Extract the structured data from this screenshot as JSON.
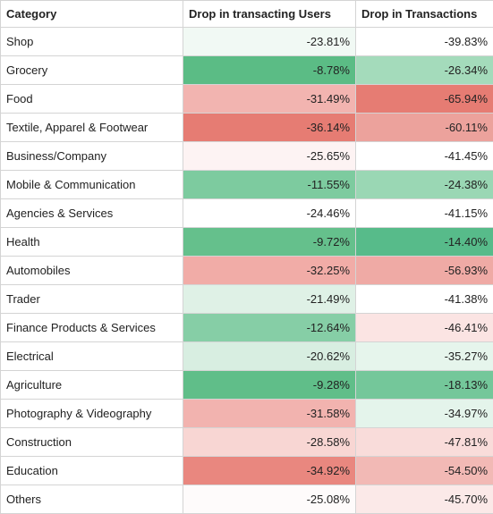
{
  "table": {
    "headers": [
      "Category",
      "Drop in transacting Users",
      "Drop in Transactions"
    ],
    "rows": [
      {
        "category": "Shop",
        "users": "-23.81%",
        "users_color": "#f1f9f4",
        "transactions": "-39.83%",
        "transactions_color": "#ffffff"
      },
      {
        "category": "Grocery",
        "users": "-8.78%",
        "users_color": "#5bbc85",
        "transactions": "-26.34%",
        "transactions_color": "#a4dbbb"
      },
      {
        "category": "Food",
        "users": "-31.49%",
        "users_color": "#f2b4b0",
        "transactions": "-65.94%",
        "transactions_color": "#e67c73"
      },
      {
        "category": "Textile, Apparel & Footwear",
        "users": "-36.14%",
        "users_color": "#e67c73",
        "transactions": "-60.11%",
        "transactions_color": "#eca29c"
      },
      {
        "category": "Business/Company",
        "users": "-25.65%",
        "users_color": "#fdf3f3",
        "transactions": "-41.45%",
        "transactions_color": "#ffffff"
      },
      {
        "category": "Mobile & Communication",
        "users": "-11.55%",
        "users_color": "#7dcb9f",
        "transactions": "-24.38%",
        "transactions_color": "#9ad7b4"
      },
      {
        "category": "Agencies & Services",
        "users": "-24.46%",
        "users_color": "#ffffff",
        "transactions": "-41.15%",
        "transactions_color": "#ffffff"
      },
      {
        "category": "Health",
        "users": "-9.72%",
        "users_color": "#65c08c",
        "transactions": "-14.40%",
        "transactions_color": "#57bb8a"
      },
      {
        "category": "Automobiles",
        "users": "-32.25%",
        "users_color": "#f1aca7",
        "transactions": "-56.93%",
        "transactions_color": "#efaaa5"
      },
      {
        "category": "Trader",
        "users": "-21.49%",
        "users_color": "#dff1e6",
        "transactions": "-41.38%",
        "transactions_color": "#ffffff"
      },
      {
        "category": "Finance Products & Services",
        "users": "-12.64%",
        "users_color": "#86ce a6",
        "transactions": "-46.41%",
        "transactions_color": "#fbe4e3"
      },
      {
        "category": "Electrical",
        "users": "-20.62%",
        "users_color": "#d8eee1",
        "transactions": "-35.27%",
        "transactions_color": "#e6f5ec"
      },
      {
        "category": "Agriculture",
        "users": "-9.28%",
        "users_color": "#60be89",
        "transactions": "-18.13%",
        "transactions_color": "#74c79a"
      },
      {
        "category": "Photography & Videography",
        "users": "-31.58%",
        "users_color": "#f2b3af",
        "transactions": "-34.97%",
        "transactions_color": "#e4f4eb"
      },
      {
        "category": "Construction",
        "users": "-28.58%",
        "users_color": "#f8d6d3",
        "transactions": "-47.81%",
        "transactions_color": "#f9dcda"
      },
      {
        "category": "Education",
        "users": "-34.92%",
        "users_color": "#e9877f",
        "transactions": "-54.50%",
        "transactions_color": "#f2b9b5"
      },
      {
        "category": "Others",
        "users": "-25.08%",
        "users_color": "#fefbfb",
        "transactions": "-45.70%",
        "transactions_color": "#fbe9e8"
      }
    ]
  }
}
